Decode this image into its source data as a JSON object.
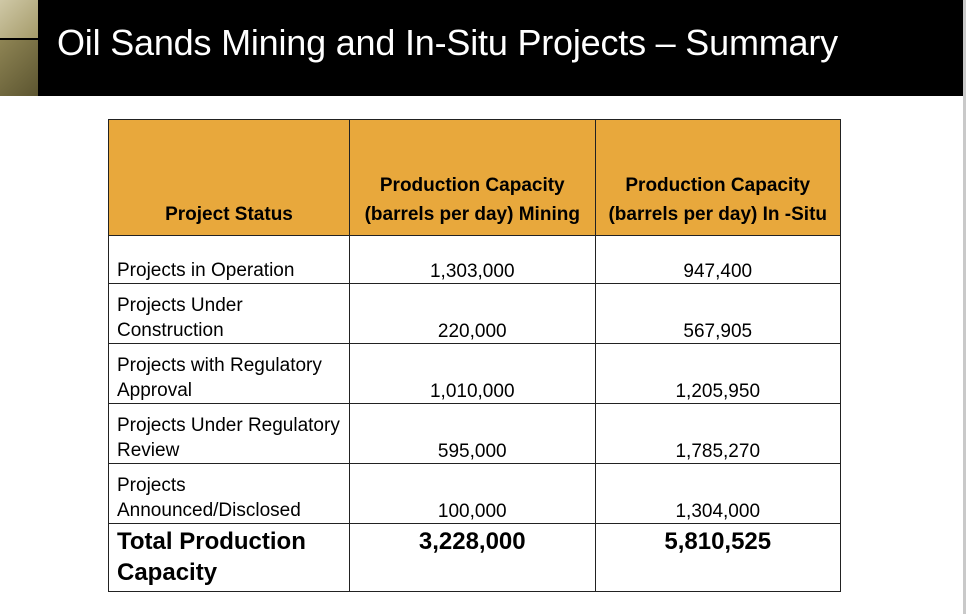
{
  "slide": {
    "title": "Oil Sands Mining and In-Situ Projects – Summary"
  },
  "table": {
    "headers": {
      "status": "Project Status",
      "mining": "Production Capacity (barrels per day) Mining",
      "insitu": "Production Capacity (barrels per day) In -Situ"
    },
    "rows": [
      {
        "status": "Projects in Operation",
        "mining": "1,303,000",
        "insitu": "947,400"
      },
      {
        "status": "Projects Under Construction",
        "mining": "220,000",
        "insitu": "567,905"
      },
      {
        "status": "Projects with Regulatory Approval",
        "mining": "1,010,000",
        "insitu": "1,205,950"
      },
      {
        "status": "Projects Under Regulatory Review",
        "mining": "595,000",
        "insitu": "1,785,270"
      },
      {
        "status": "Projects Announced/Disclosed",
        "mining": "100,000",
        "insitu": "1,304,000"
      }
    ],
    "total": {
      "status": "Total Production Capacity",
      "mining": "3,228,000",
      "insitu": "5,810,525"
    }
  },
  "colors": {
    "header_bar": "#000000",
    "table_header": "#e8a83c",
    "title_text": "#ffffff"
  }
}
